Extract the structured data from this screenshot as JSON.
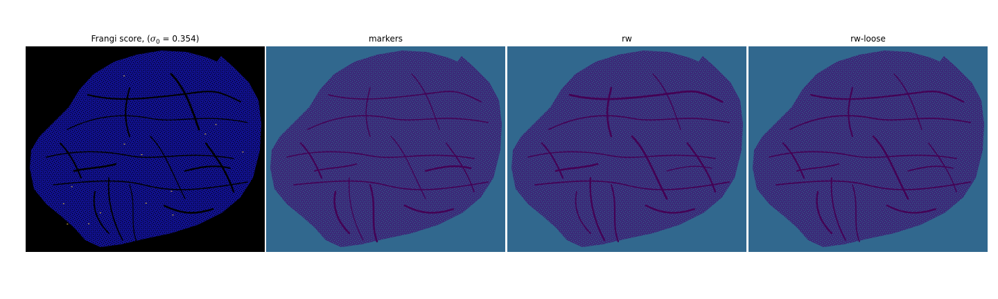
{
  "panels": [
    {
      "title_prefix": "Frangi score, (",
      "title_symbol": "σ",
      "title_subscript": "0",
      "title_suffix": " = 0.354)",
      "background": "#000000",
      "tissue_color": "#10108a",
      "vessel_color": "#000000",
      "highlight_color": "#f2c84b"
    },
    {
      "title": "markers",
      "background": "#31688e",
      "tissue_color": "#3b2a78",
      "vessel_color": "#440154"
    },
    {
      "title": "rw",
      "background": "#31688e",
      "tissue_color": "#3b2a78",
      "vessel_color": "#440154"
    },
    {
      "title": "rw-loose",
      "background": "#31688e",
      "tissue_color": "#3b2a78",
      "vessel_color": "#440154"
    }
  ]
}
